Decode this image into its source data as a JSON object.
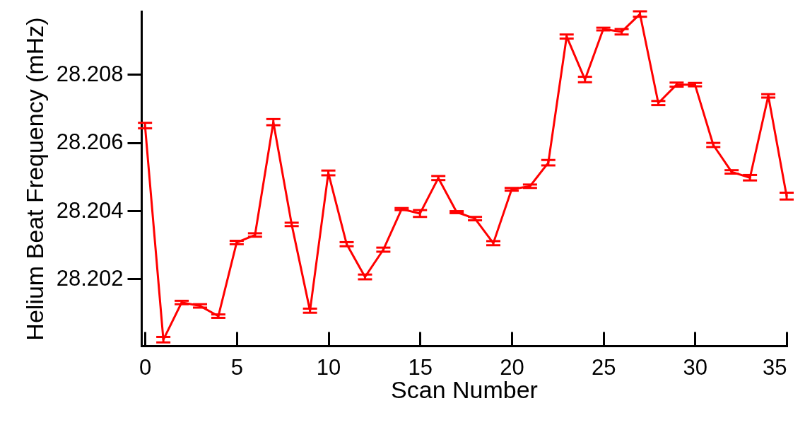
{
  "chart_data": {
    "type": "line",
    "xlabel": "Scan Number",
    "ylabel": "Helium Beat Frequency (mHz)",
    "x": [
      0,
      1,
      2,
      3,
      4,
      5,
      6,
      7,
      8,
      9,
      10,
      11,
      12,
      13,
      14,
      15,
      16,
      17,
      18,
      19,
      20,
      21,
      22,
      23,
      24,
      25,
      26,
      27,
      28,
      29,
      30,
      31,
      32,
      33,
      34,
      35
    ],
    "series": [
      {
        "color": "#ff0000",
        "values": [
          28.2065,
          28.20022,
          28.20131,
          28.20121,
          28.20091,
          28.20307,
          28.20329,
          28.2066,
          28.2036,
          28.20107,
          28.20511,
          28.20302,
          28.20206,
          28.20286,
          28.20405,
          28.20392,
          28.20496,
          28.20396,
          28.20377,
          28.20305,
          28.20463,
          28.20472,
          28.20541,
          28.20911,
          28.20785,
          28.20933,
          28.20925,
          28.20977,
          28.20716,
          28.2077,
          28.2077,
          28.20593,
          28.20514,
          28.20497,
          28.20737,
          28.20443
        ],
        "errors": [
          8e-05,
          8e-05,
          5e-05,
          5e-05,
          5e-05,
          5e-05,
          5e-05,
          9e-05,
          5e-05,
          6e-05,
          7e-05,
          6e-05,
          7e-05,
          6e-05,
          3e-05,
          0.0001,
          6e-05,
          3e-05,
          5e-05,
          6e-05,
          4e-05,
          5e-05,
          8e-05,
          6e-05,
          8e-05,
          4e-05,
          8e-05,
          8e-05,
          6e-05,
          6e-05,
          5e-05,
          6e-05,
          5e-05,
          8e-05,
          5e-05,
          0.0001
        ]
      }
    ],
    "xlim": [
      -0.2,
      35
    ],
    "xticks": [
      0,
      5,
      10,
      15,
      20,
      25,
      30,
      35
    ],
    "ylim": [
      28.20004,
      28.20985
    ],
    "yticks": [
      28.202,
      28.204,
      28.206,
      28.208
    ]
  }
}
